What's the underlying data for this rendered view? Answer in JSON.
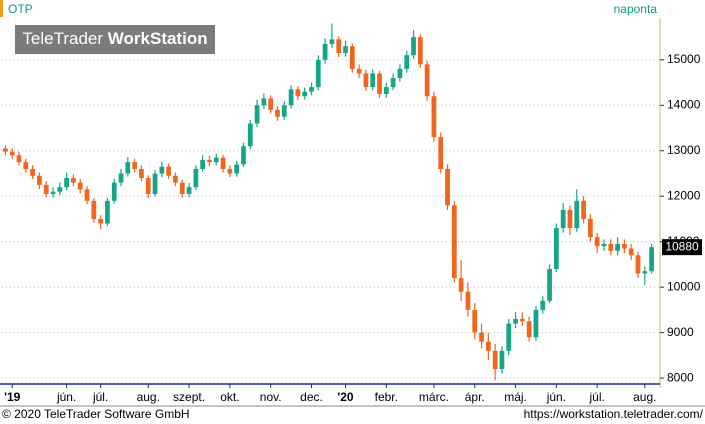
{
  "chart_data": {
    "type": "candlestick",
    "title": "OTP",
    "interval": "naponta",
    "logo": {
      "brand": "TeleTrader",
      "product": "WorkStation"
    },
    "footer": {
      "copyright": "© 2020 TeleTrader Software GmbH",
      "url": "https://workstation.teletrader.com/"
    },
    "categories": [
      null,
      "'19",
      null,
      null,
      null,
      null,
      null,
      null,
      null,
      "jún.",
      null,
      null,
      null,
      null,
      "júl.",
      null,
      null,
      null,
      null,
      null,
      null,
      "aug.",
      null,
      null,
      null,
      null,
      null,
      "szept.",
      null,
      null,
      null,
      null,
      null,
      "okt.",
      null,
      null,
      null,
      null,
      null,
      "nov.",
      null,
      null,
      null,
      null,
      null,
      "dec.",
      null,
      null,
      null,
      null,
      "'20",
      null,
      null,
      null,
      null,
      null,
      "febr.",
      null,
      null,
      null,
      null,
      null,
      null,
      "márc.",
      null,
      null,
      null,
      null,
      null,
      "ápr.",
      null,
      null,
      null,
      null,
      null,
      "máj.",
      null,
      null,
      null,
      null,
      null,
      "jún.",
      null,
      null,
      null,
      null,
      null,
      "júl.",
      null,
      null,
      null,
      null,
      null,
      null,
      "aug.",
      null
    ],
    "open": [
      13050,
      12980,
      12900,
      12750,
      12600,
      12450,
      12250,
      12050,
      12100,
      12200,
      12400,
      12300,
      12150,
      11900,
      11500,
      11400,
      11900,
      12300,
      12500,
      12750,
      12600,
      12400,
      12050,
      12500,
      12650,
      12450,
      12300,
      12050,
      12200,
      12600,
      12800,
      12750,
      12850,
      12600,
      12500,
      12700,
      13100,
      13600,
      14000,
      14150,
      13900,
      13750,
      14000,
      14350,
      14200,
      14300,
      14400,
      15000,
      15350,
      15450,
      15150,
      15300,
      14800,
      14700,
      14400,
      14700,
      14250,
      14400,
      14600,
      14800,
      15100,
      15500,
      14900,
      14200,
      13300,
      12600,
      11800,
      10200,
      9900,
      9500,
      9000,
      8800,
      8600,
      8200,
      8600,
      9200,
      9300,
      9250,
      8900,
      9500,
      9700,
      10400,
      11300,
      11700,
      11300,
      11900,
      11500,
      11100,
      10900,
      10950,
      10800,
      10950,
      10850,
      10700,
      10300,
      10350
    ],
    "high": [
      13120,
      13060,
      12980,
      12820,
      12680,
      12520,
      12330,
      12200,
      12300,
      12520,
      12480,
      12380,
      12220,
      11960,
      11580,
      11960,
      12380,
      12600,
      12860,
      12820,
      12680,
      12460,
      12580,
      12760,
      12720,
      12520,
      12360,
      12290,
      12680,
      12900,
      12890,
      12940,
      12910,
      12680,
      12780,
      13180,
      13680,
      14120,
      14260,
      14220,
      13980,
      14090,
      14440,
      14420,
      14390,
      14500,
      15100,
      15480,
      15800,
      15520,
      15420,
      15360,
      14900,
      14780,
      14790,
      14760,
      14500,
      14700,
      14900,
      15200,
      15650,
      15560,
      14980,
      14300,
      13400,
      12700,
      11900,
      10600,
      10100,
      9650,
      9200,
      9000,
      8750,
      8700,
      9300,
      9450,
      9450,
      9350,
      9580,
      9800,
      10500,
      11400,
      11850,
      11800,
      12150,
      12000,
      11600,
      11200,
      11050,
      11050,
      11100,
      11050,
      10950,
      10780,
      10450,
      10950
    ],
    "low": [
      12900,
      12820,
      12680,
      12520,
      12380,
      12160,
      11980,
      11970,
      12020,
      12130,
      12220,
      12060,
      11820,
      11420,
      11280,
      11350,
      11840,
      12220,
      12430,
      12520,
      12330,
      11960,
      11990,
      12420,
      12380,
      12220,
      11970,
      11980,
      12140,
      12540,
      12660,
      12680,
      12520,
      12420,
      12430,
      12640,
      13040,
      13520,
      13920,
      13820,
      13660,
      13680,
      13930,
      14120,
      14130,
      14220,
      14330,
      14920,
      15260,
      15060,
      15070,
      14720,
      14600,
      14320,
      14330,
      14160,
      14160,
      14330,
      14520,
      14720,
      15020,
      14820,
      14100,
      13200,
      12500,
      11700,
      10100,
      9700,
      9350,
      8850,
      8650,
      8400,
      7950,
      8100,
      8500,
      9100,
      9150,
      8800,
      8820,
      9420,
      9650,
      10330,
      11200,
      11150,
      11220,
      11400,
      11000,
      10750,
      10800,
      10700,
      10700,
      10750,
      10600,
      10200,
      10050,
      10300
    ],
    "close": [
      12980,
      12900,
      12750,
      12600,
      12450,
      12250,
      12050,
      12100,
      12200,
      12400,
      12300,
      12150,
      11900,
      11500,
      11400,
      11900,
      12300,
      12500,
      12750,
      12600,
      12400,
      12050,
      12500,
      12650,
      12450,
      12300,
      12050,
      12200,
      12600,
      12800,
      12750,
      12850,
      12600,
      12500,
      12700,
      13100,
      13600,
      14000,
      14150,
      13900,
      13750,
      14000,
      14350,
      14200,
      14300,
      14400,
      15000,
      15350,
      15450,
      15150,
      15300,
      14800,
      14700,
      14400,
      14700,
      14250,
      14400,
      14600,
      14800,
      15100,
      15500,
      14900,
      14200,
      13300,
      12600,
      11800,
      10200,
      9900,
      9500,
      9000,
      8800,
      8600,
      8200,
      8600,
      9200,
      9300,
      9250,
      8900,
      9500,
      9700,
      10400,
      11300,
      11700,
      11300,
      11900,
      11500,
      11100,
      10900,
      10950,
      10800,
      10950,
      10850,
      10700,
      10300,
      10350,
      10880
    ],
    "up_color": "#17a589",
    "down_color": "#f0661f",
    "ylim": [
      7870,
      15920
    ],
    "yticks": [
      8000,
      9000,
      10000,
      11000,
      12000,
      13000,
      14000,
      15000
    ],
    "grid": true
  }
}
